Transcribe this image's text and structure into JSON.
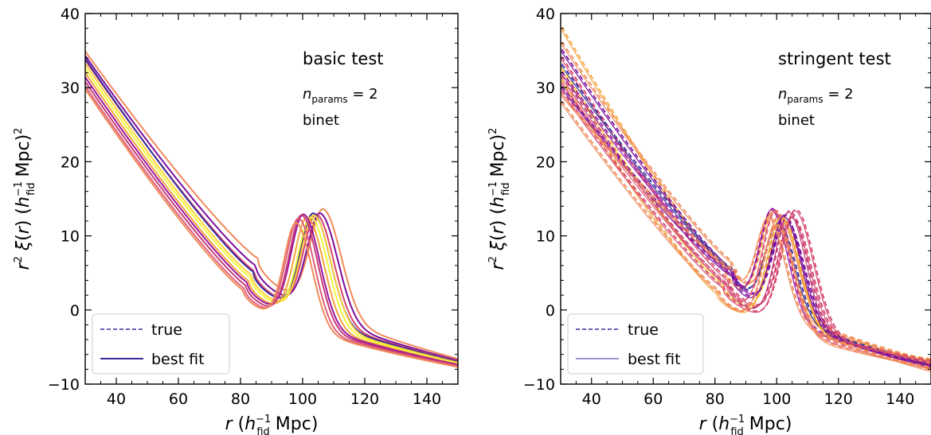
{
  "chart_data": [
    {
      "type": "line",
      "annotation": "basic test",
      "params_label": "n_params = 2",
      "params_value": "2",
      "method_label": "binet",
      "xlabel": "r (h_fid^-1 Mpc)",
      "ylabel": "r^2 ξ(r) (h_fid^-1 Mpc)^2",
      "xlim": [
        30,
        150
      ],
      "ylim": [
        -10,
        40
      ],
      "xticks": [
        40,
        60,
        80,
        100,
        120,
        140
      ],
      "yticks": [
        -10,
        0,
        10,
        20,
        30,
        40
      ],
      "grid": false,
      "legend_position": "lower-left",
      "legend": [
        {
          "label": "true",
          "style": "dashed",
          "color": "#3b2a9e"
        },
        {
          "label": "best fit",
          "style": "solid",
          "color": "#3b2a9e"
        }
      ],
      "curve_style": "solid",
      "series": [
        {
          "color": "#f08a5a",
          "values": {
            "a": 34.9,
            "rmin": 85.5,
            "ymin": 7.0,
            "peak": 106.8,
            "amp": 14.0,
            "width": 9.2,
            "tail": -6.6
          }
        },
        {
          "color": "#7a0f9e",
          "values": {
            "a": 34.3,
            "rmin": 84.9,
            "ymin": 6.0,
            "peak": 105.8,
            "amp": 13.9,
            "width": 9.0,
            "tail": -6.8
          }
        },
        {
          "color": "#d6456e",
          "values": {
            "a": 33.7,
            "rmin": 84.4,
            "ymin": 5.3,
            "peak": 104.6,
            "amp": 14.0,
            "width": 8.8,
            "tail": -6.9
          }
        },
        {
          "color": "#3a2f9b",
          "values": {
            "a": 33.9,
            "rmin": 84.0,
            "ymin": 5.2,
            "peak": 103.6,
            "amp": 14.1,
            "width": 8.7,
            "tail": -7.0
          }
        },
        {
          "color": "#fbd339",
          "values": {
            "a": 33.2,
            "rmin": 83.6,
            "ymin": 4.7,
            "peak": 103.8,
            "amp": 14.2,
            "width": 8.7,
            "tail": -7.1
          }
        },
        {
          "color": "#f0f93a",
          "values": {
            "a": 32.6,
            "rmin": 83.2,
            "ymin": 4.4,
            "peak": 102.8,
            "amp": 14.0,
            "width": 8.6,
            "tail": -7.2
          }
        },
        {
          "color": "#f5a33f",
          "values": {
            "a": 32.0,
            "rmin": 82.7,
            "ymin": 3.9,
            "peak": 101.6,
            "amp": 14.2,
            "width": 8.5,
            "tail": -7.3
          }
        },
        {
          "color": "#9c179e",
          "values": {
            "a": 31.4,
            "rmin": 82.2,
            "ymin": 3.7,
            "peak": 100.4,
            "amp": 14.6,
            "width": 8.4,
            "tail": -7.4
          }
        },
        {
          "color": "#c43c76",
          "values": {
            "a": 30.8,
            "rmin": 81.8,
            "ymin": 3.3,
            "peak": 99.8,
            "amp": 14.7,
            "width": 8.3,
            "tail": -7.5
          }
        },
        {
          "color": "#e0607a",
          "values": {
            "a": 30.2,
            "rmin": 81.3,
            "ymin": 2.9,
            "peak": 98.8,
            "amp": 14.4,
            "width": 8.2,
            "tail": -7.6
          }
        },
        {
          "color": "#f08a5a",
          "values": {
            "a": 29.8,
            "rmin": 80.8,
            "ymin": 2.7,
            "peak": 98.0,
            "amp": 13.9,
            "width": 8.1,
            "tail": -7.7
          }
        }
      ]
    },
    {
      "type": "line",
      "annotation": "stringent test",
      "params_label": "n_params = 2",
      "params_value": "2",
      "method_label": "binet",
      "xlabel": "r (h_fid^-1 Mpc)",
      "ylabel": "r^2 ξ(r) (h_fid^-1 Mpc)^2",
      "xlim": [
        30,
        150
      ],
      "ylim": [
        -10,
        40
      ],
      "xticks": [
        40,
        60,
        80,
        100,
        120,
        140
      ],
      "yticks": [
        -10,
        0,
        10,
        20,
        30,
        40
      ],
      "grid": false,
      "legend_position": "lower-left",
      "legend": [
        {
          "label": "true",
          "style": "dashed",
          "color": "#3b2a9e"
        },
        {
          "label": "best fit",
          "style": "thin-solid",
          "color": "#3b2a9e"
        }
      ],
      "curve_style": "dashed-and-solid",
      "series": [
        {
          "color": "#f5a33f",
          "values": {
            "a": 38.0,
            "rmin": 83.0,
            "ymin": 5.5,
            "peak": 99.0,
            "amp": 13.5,
            "width": 8.6,
            "tail": -7.0
          }
        },
        {
          "color": "#f08a5a",
          "values": {
            "a": 36.0,
            "rmin": 85.0,
            "ymin": 6.5,
            "peak": 101.0,
            "amp": 12.5,
            "width": 8.8,
            "tail": -7.2
          }
        },
        {
          "color": "#7a0f9e",
          "values": {
            "a": 35.0,
            "rmin": 86.0,
            "ymin": 5.0,
            "peak": 103.0,
            "amp": 13.0,
            "width": 9.0,
            "tail": -7.5
          }
        },
        {
          "color": "#d6456e",
          "values": {
            "a": 34.0,
            "rmin": 84.0,
            "ymin": 4.0,
            "peak": 105.0,
            "amp": 14.5,
            "width": 9.2,
            "tail": -7.4
          }
        },
        {
          "color": "#3a2f9b",
          "values": {
            "a": 33.0,
            "rmin": 85.0,
            "ymin": 5.5,
            "peak": 100.5,
            "amp": 12.0,
            "width": 8.7,
            "tail": -7.6
          }
        },
        {
          "color": "#fbd339",
          "values": {
            "a": 32.5,
            "rmin": 82.0,
            "ymin": 3.5,
            "peak": 102.0,
            "amp": 14.0,
            "width": 8.9,
            "tail": -7.1
          }
        },
        {
          "color": "#9c179e",
          "values": {
            "a": 32.0,
            "rmin": 86.0,
            "ymin": 4.5,
            "peak": 98.5,
            "amp": 14.0,
            "width": 8.4,
            "tail": -7.8
          }
        },
        {
          "color": "#c43c76",
          "values": {
            "a": 31.5,
            "rmin": 84.5,
            "ymin": 3.0,
            "peak": 104.0,
            "amp": 15.5,
            "width": 9.0,
            "tail": -7.3
          }
        },
        {
          "color": "#f5a33f",
          "values": {
            "a": 31.0,
            "rmin": 80.5,
            "ymin": 2.2,
            "peak": 101.5,
            "amp": 15.0,
            "width": 9.3,
            "tail": -6.8
          }
        },
        {
          "color": "#e0607a",
          "values": {
            "a": 30.5,
            "rmin": 83.5,
            "ymin": 3.5,
            "peak": 99.5,
            "amp": 15.0,
            "width": 8.6,
            "tail": -8.0
          }
        },
        {
          "color": "#7a0f9e",
          "values": {
            "a": 30.0,
            "rmin": 85.5,
            "ymin": 4.5,
            "peak": 102.5,
            "amp": 14.0,
            "width": 8.8,
            "tail": -7.7
          }
        },
        {
          "color": "#d6456e",
          "values": {
            "a": 29.5,
            "rmin": 82.5,
            "ymin": 3.0,
            "peak": 106.0,
            "amp": 16.0,
            "width": 9.5,
            "tail": -7.0
          }
        },
        {
          "color": "#f08a5a",
          "values": {
            "a": 29.0,
            "rmin": 86.5,
            "ymin": 5.0,
            "peak": 97.5,
            "amp": 12.5,
            "width": 8.3,
            "tail": -8.3
          }
        },
        {
          "color": "#f08a5a",
          "values": {
            "a": 28.0,
            "rmin": 81.0,
            "ymin": 2.5,
            "peak": 100.0,
            "amp": 14.0,
            "width": 9.0,
            "tail": -7.9
          }
        }
      ]
    }
  ]
}
